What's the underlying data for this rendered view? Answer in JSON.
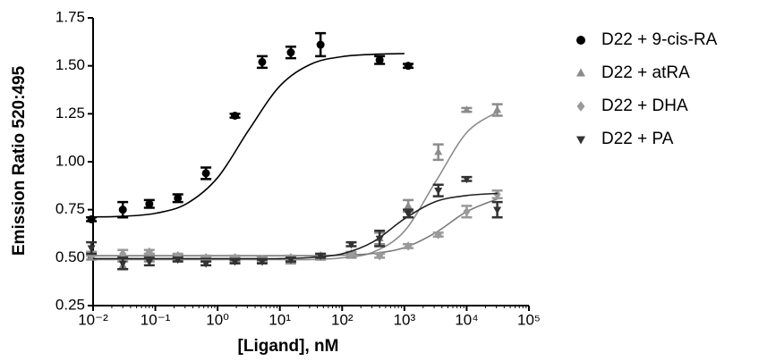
{
  "chart_data": {
    "type": "scatter",
    "xlabel": "[Ligand], nM",
    "ylabel": "Emission Ratio 520:495",
    "xscale": "log",
    "xlim": [
      0.01,
      100000
    ],
    "xticks": [
      {
        "value": 0.01,
        "label": "10⁻²"
      },
      {
        "value": 0.1,
        "label": "10⁻¹"
      },
      {
        "value": 1,
        "label": "10⁰"
      },
      {
        "value": 10,
        "label": "10¹"
      },
      {
        "value": 100,
        "label": "10²"
      },
      {
        "value": 1000,
        "label": "10³"
      },
      {
        "value": 10000,
        "label": "10⁴"
      },
      {
        "value": 100000,
        "label": "10⁵"
      }
    ],
    "ylim": [
      0.25,
      1.75
    ],
    "yticks": [
      0.25,
      {
        "value": 0.5,
        "label": "0.50"
      },
      0.75,
      {
        "value": 1,
        "label": "1.00"
      },
      1.25,
      {
        "value": 1.5,
        "label": "1.50"
      },
      1.75
    ],
    "legend": "right",
    "fit_x": [
      0.01,
      0.0316,
      0.1,
      0.316,
      1,
      3.16,
      10,
      31.6,
      100,
      316,
      1000,
      3162,
      10000,
      31623
    ],
    "series": [
      {
        "name": "D22 + 9-cis-RA",
        "color": "#000000",
        "marker": "circle",
        "line_color": "#000000",
        "x": [
          0.0094,
          0.03,
          0.08,
          0.23,
          0.65,
          1.9,
          5.2,
          15,
          45,
          400,
          1150
        ],
        "values": [
          0.7,
          0.75,
          0.78,
          0.81,
          0.94,
          1.24,
          1.52,
          1.57,
          1.61,
          1.53,
          1.5
        ],
        "errors": [
          0.01,
          0.04,
          0.02,
          0.02,
          0.03,
          0.01,
          0.03,
          0.03,
          0.06,
          0.02,
          0.01
        ],
        "fit": [
          0.712,
          0.716,
          0.731,
          0.781,
          0.917,
          1.165,
          1.395,
          1.509,
          1.548,
          1.56,
          1.564,
          null,
          null,
          null
        ]
      },
      {
        "name": "D22 + atRA",
        "color": "#8c8c8c",
        "marker": "triangle-up",
        "line_color": "#8c8c8c",
        "x": [
          0.0094,
          0.03,
          0.08,
          0.23,
          0.65,
          1.9,
          5.2,
          15,
          45,
          140,
          400,
          1150,
          3500,
          10000,
          31000
        ],
        "values": [
          0.51,
          0.46,
          0.5,
          0.5,
          0.49,
          0.49,
          0.49,
          0.48,
          0.5,
          0.51,
          0.6,
          0.77,
          1.05,
          1.27,
          1.27
        ],
        "errors": [
          0.02,
          0.02,
          0.02,
          0.01,
          0.01,
          0.01,
          0.01,
          0.01,
          0.01,
          0.01,
          0.03,
          0.03,
          0.04,
          0.01,
          0.03
        ],
        "fit": [
          0.49,
          0.49,
          0.49,
          0.49,
          0.49,
          0.49,
          0.49,
          0.49,
          0.499,
          0.529,
          0.638,
          0.895,
          1.152,
          1.261
        ]
      },
      {
        "name": "D22 + DHA",
        "color": "#9a9a9a",
        "marker": "diamond",
        "line_color": "#7a7a7a",
        "x": [
          0.0094,
          0.03,
          0.08,
          0.23,
          0.65,
          1.9,
          5.2,
          15,
          45,
          140,
          400,
          1150,
          3500,
          10000,
          31000
        ],
        "values": [
          0.52,
          0.52,
          0.53,
          0.51,
          0.5,
          0.5,
          0.49,
          0.5,
          0.51,
          0.52,
          0.51,
          0.56,
          0.62,
          0.74,
          0.83
        ],
        "errors": [
          0.01,
          0.02,
          0.01,
          0.01,
          0.01,
          0.01,
          0.01,
          0.01,
          0.01,
          0.01,
          0.01,
          0.01,
          0.01,
          0.03,
          0.02
        ],
        "fit": [
          0.51,
          0.51,
          0.51,
          0.51,
          0.51,
          0.51,
          0.51,
          0.51,
          0.513,
          0.522,
          0.552,
          0.63,
          0.74,
          0.807
        ]
      },
      {
        "name": "D22 + PA",
        "color": "#333333",
        "marker": "triangle-down",
        "line_color": "#222222",
        "x": [
          0.0094,
          0.03,
          0.08,
          0.23,
          0.65,
          1.9,
          5.2,
          15,
          45,
          140,
          400,
          1150,
          3500,
          10000,
          31000
        ],
        "values": [
          0.55,
          0.47,
          0.48,
          0.49,
          0.47,
          0.48,
          0.48,
          0.49,
          0.51,
          0.57,
          0.6,
          0.73,
          0.85,
          0.91,
          0.75
        ],
        "errors": [
          0.03,
          0.03,
          0.02,
          0.01,
          0.01,
          0.01,
          0.01,
          0.01,
          0.01,
          0.01,
          0.04,
          0.02,
          0.03,
          0.01,
          0.04
        ],
        "fit": [
          0.495,
          0.495,
          0.495,
          0.495,
          0.495,
          0.495,
          0.495,
          0.501,
          0.52,
          0.583,
          0.702,
          0.792,
          0.824,
          0.835
        ]
      }
    ]
  }
}
